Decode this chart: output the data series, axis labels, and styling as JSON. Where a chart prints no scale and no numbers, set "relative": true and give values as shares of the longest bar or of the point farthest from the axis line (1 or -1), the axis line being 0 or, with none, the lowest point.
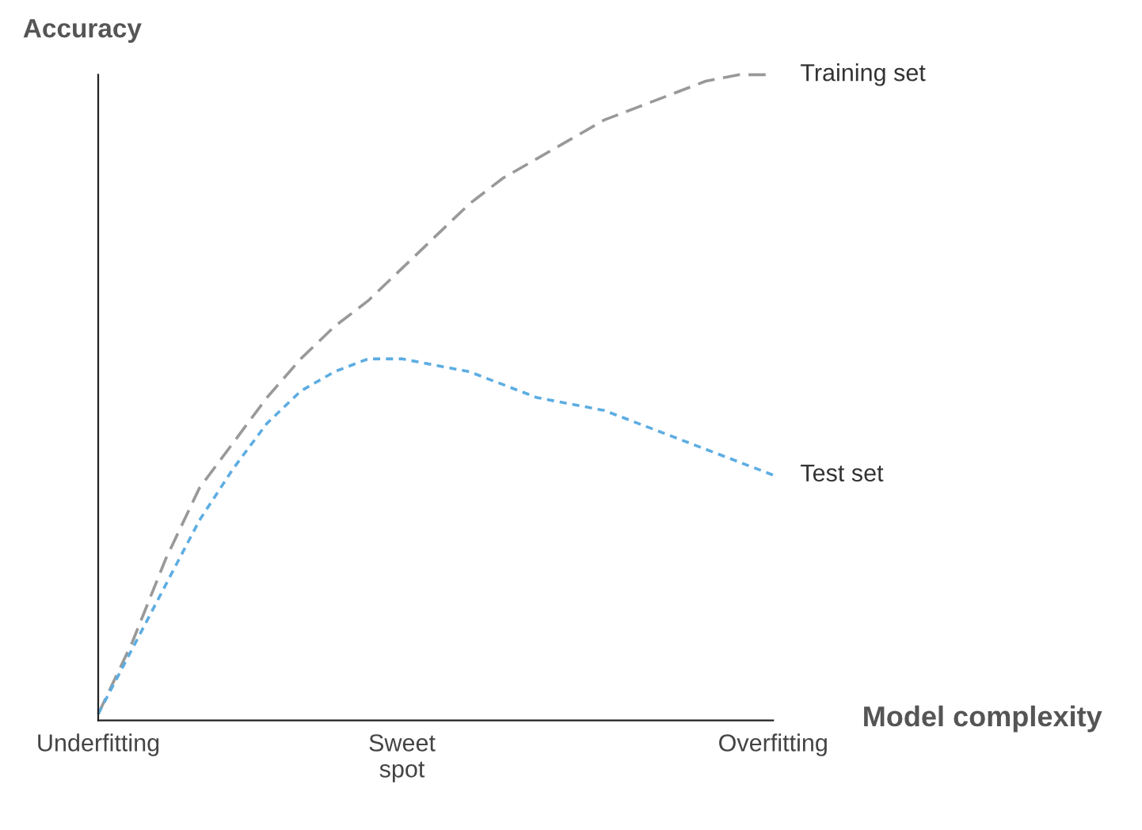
{
  "chart_data": {
    "type": "line",
    "relative": true,
    "ylabel": "Accuracy",
    "xlabel": "Model complexity",
    "categories": [
      "Underfitting",
      null,
      null,
      null,
      null,
      null,
      null,
      null,
      null,
      "Sweet\nspot",
      null,
      null,
      null,
      null,
      null,
      null,
      null,
      null,
      null,
      null,
      "Overfitting"
    ],
    "series": [
      {
        "name": "Training set",
        "color": "#999999",
        "line_style": "dashed",
        "values": [
          0.01,
          0.12,
          0.25,
          0.36,
          0.43,
          0.5,
          0.56,
          0.61,
          0.65,
          0.7,
          0.75,
          0.8,
          0.84,
          0.87,
          0.9,
          0.93,
          0.95,
          0.97,
          0.99,
          1.0,
          1.0
        ]
      },
      {
        "name": "Test set",
        "color": "#5dade2",
        "line_style": "dotted",
        "values": [
          0.01,
          0.11,
          0.21,
          0.31,
          0.39,
          0.46,
          0.51,
          0.54,
          0.56,
          0.56,
          0.55,
          0.54,
          0.52,
          0.5,
          0.49,
          0.48,
          0.46,
          0.44,
          0.42,
          0.4,
          0.38
        ]
      }
    ],
    "grid": false,
    "legend": false,
    "marker": "none"
  }
}
